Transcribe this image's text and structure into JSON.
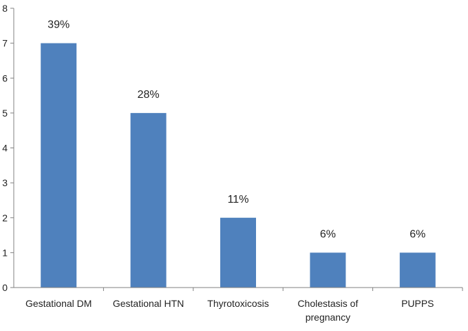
{
  "chart_data": {
    "type": "bar",
    "categories": [
      "Gestational DM",
      "Gestational HTN",
      "Thyrotoxicosis",
      "Cholestasis of pregnancy",
      "PUPPS"
    ],
    "category_lines": [
      [
        "Gestational DM"
      ],
      [
        "Gestational HTN"
      ],
      [
        "Thyrotoxicosis"
      ],
      [
        "Cholestasis of",
        "pregnancy"
      ],
      [
        "PUPPS"
      ]
    ],
    "values": [
      7,
      5,
      2,
      1,
      1
    ],
    "data_labels": [
      "39%",
      "28%",
      "11%",
      "6%",
      "6%"
    ],
    "ylim": [
      0,
      8
    ],
    "yticks": [
      0,
      1,
      2,
      3,
      4,
      5,
      6,
      7,
      8
    ],
    "grid": false,
    "legend": "none",
    "title": "",
    "xlabel": "",
    "ylabel": "",
    "bar_color": "#4F81BD",
    "axis_color": "#808080"
  }
}
